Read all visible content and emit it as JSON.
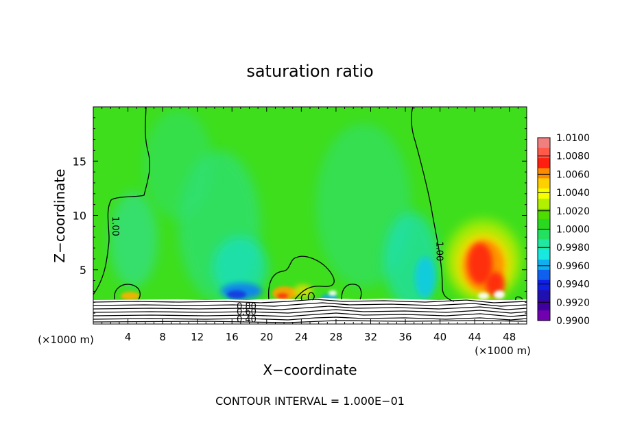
{
  "chart_data": {
    "type": "heatmap",
    "title": "saturation ratio",
    "xlabel": "X−coordinate",
    "ylabel": "Z−coordinate",
    "x_unit_left": "(×1000 m)",
    "x_unit_right": "(×1000 m)",
    "footer": "CONTOUR INTERVAL = 1.000E−01",
    "xlim": [
      0,
      50
    ],
    "ylim": [
      0,
      20
    ],
    "x_ticks": [
      4,
      8,
      12,
      16,
      20,
      24,
      28,
      32,
      36,
      40,
      44,
      48
    ],
    "y_ticks": [
      5,
      10,
      15
    ],
    "colorbar": {
      "min": 0.99,
      "max": 1.01,
      "labels": [
        "1.0100",
        "1.0080",
        "1.0060",
        "1.0040",
        "1.0020",
        "1.0000",
        "0.9980",
        "0.9960",
        "0.9940",
        "0.9920",
        "0.9900"
      ],
      "colors": [
        "#f08080",
        "#ff5a4a",
        "#ff1f10",
        "#ff8c00",
        "#ffd000",
        "#f5ff00",
        "#b0f000",
        "#50dc00",
        "#2ad820",
        "#24e060",
        "#20e8a0",
        "#18e8e0",
        "#10b0f0",
        "#1060f0",
        "#1020e0",
        "#2010b0",
        "#4000a0",
        "#7000b0"
      ]
    },
    "contour_labels": [
      {
        "text": "1.00",
        "x": 2.2,
        "y": 9.0
      },
      {
        "text": "1.00",
        "x": 39.6,
        "y": 6.7
      },
      {
        "text": "0.80",
        "x": 17.2,
        "y": 1.6
      },
      {
        "text": "0.60",
        "x": 17.2,
        "y": 1.1
      },
      {
        "text": "0.40",
        "x": 17.2,
        "y": 0.4
      }
    ]
  }
}
